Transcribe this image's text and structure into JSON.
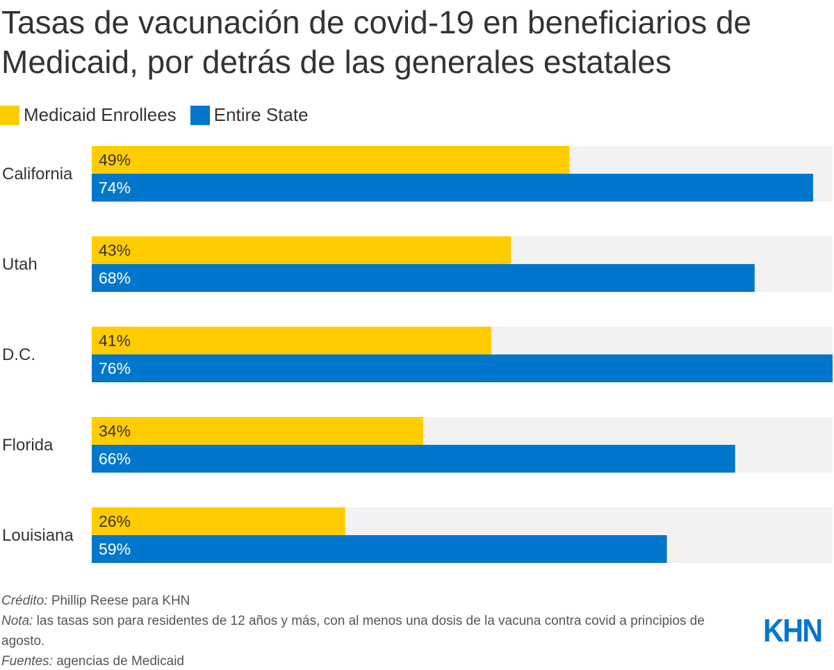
{
  "title": "Tasas de vacunación de covid-19 en beneficiarios de Medicaid, por detrás de las generales estatales",
  "colors": {
    "medicaid": "#FFCC00",
    "state": "#0077CC",
    "track": "#F2F2F2",
    "text": "#333333"
  },
  "chart_data": {
    "type": "bar",
    "orientation": "horizontal",
    "categories": [
      "California",
      "Utah",
      "D.C.",
      "Florida",
      "Louisiana"
    ],
    "series": [
      {
        "name": "Medicaid Enrollees",
        "values": [
          49,
          43,
          41,
          34,
          26
        ]
      },
      {
        "name": "Entire State",
        "values": [
          74,
          68,
          76,
          66,
          59
        ]
      }
    ],
    "value_format": "%",
    "xlim": [
      0,
      76
    ],
    "legend": "top-left",
    "grid": false
  },
  "footer": {
    "credit_label": "Crédito:",
    "credit": "Phillip Reese para KHN",
    "note_label": "Nota:",
    "note": "las tasas son para residentes de 12 años y más, con al menos una dosis de la vacuna contra covid a principios de agosto.",
    "sources_label": "Fuentes:",
    "sources": "agencias de Medicaid"
  },
  "logo": "KHN"
}
